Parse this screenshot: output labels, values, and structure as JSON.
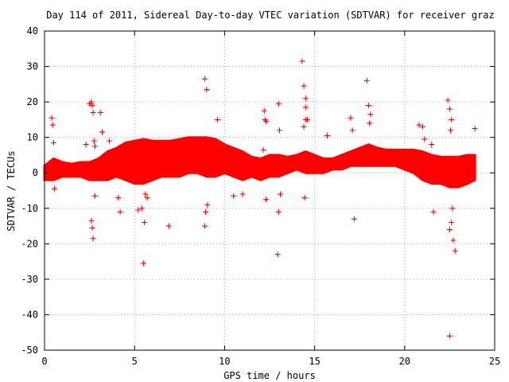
{
  "chart_data": {
    "type": "scatter",
    "title": "Day 114 of 2011, Sidereal Day-to-day VTEC variation (SDTVAR) for receiver graz",
    "xlabel": "GPS time / hours",
    "ylabel": "SDTVAR / TECUs",
    "xlim": [
      0,
      25
    ],
    "ylim": [
      -50,
      40
    ],
    "xticks": [
      0,
      5,
      10,
      15,
      20,
      25
    ],
    "yticks": [
      40,
      30,
      20,
      10,
      0,
      -10,
      -20,
      -30,
      -40,
      -50
    ],
    "grid": true,
    "marker": "+",
    "color": "#ff0000",
    "band": {
      "description": "dense scatter band (upper/lower envelope, TECU)",
      "x": [
        0,
        0.5,
        1,
        1.5,
        2,
        2.5,
        3,
        3.5,
        4,
        4.5,
        5,
        5.5,
        6,
        6.5,
        7,
        7.5,
        8,
        8.5,
        9,
        9.5,
        10,
        10.5,
        11,
        11.5,
        12,
        12.5,
        13,
        13.5,
        14,
        14.5,
        15,
        15.5,
        16,
        16.5,
        17,
        17.5,
        18,
        18.5,
        19,
        19.5,
        20,
        20.5,
        21,
        21.5,
        22,
        22.5,
        23,
        23.5,
        23.9
      ],
      "upper": [
        2,
        4,
        3,
        2.5,
        3,
        3,
        4,
        6,
        7,
        8.5,
        9,
        9.5,
        9,
        9,
        9,
        9.5,
        10,
        10,
        10,
        9.5,
        8,
        7,
        6,
        4.5,
        4,
        5,
        5,
        4.5,
        5,
        6,
        5,
        4,
        4,
        5,
        6,
        7,
        8,
        7,
        6.5,
        6.5,
        6.5,
        6.5,
        6,
        5,
        4.5,
        4.5,
        4.5,
        5,
        5
      ],
      "lower": [
        -2,
        -2,
        -1,
        -1,
        -1,
        -2,
        -2,
        -2,
        -1,
        -2,
        -3,
        -3,
        -2,
        -1,
        -1,
        -1,
        0,
        0,
        -1,
        -1,
        0,
        -1,
        -2,
        -1,
        -2,
        -1,
        -1,
        0,
        1,
        0,
        0,
        0,
        1,
        1,
        2,
        2,
        2,
        2,
        2,
        2,
        1,
        0,
        -2,
        -3,
        -3,
        -4,
        -4,
        -3,
        -2
      ]
    },
    "outliers": {
      "x": [
        0.4,
        0.45,
        0.5,
        0.55,
        2.3,
        2.5,
        2.6,
        2.65,
        2.7,
        2.75,
        2.8,
        2.6,
        2.65,
        2.7,
        2.8,
        3.1,
        3.2,
        3.6,
        4.1,
        4.2,
        5.2,
        5.4,
        5.5,
        5.55,
        5.6,
        5.7,
        6.9,
        8.9,
        9.0,
        8.95,
        9.05,
        8.9,
        9.6,
        10.5,
        11.0,
        12.2,
        12.25,
        12.3,
        12.15,
        12.3,
        13.0,
        13.05,
        13.1,
        12.95,
        13.0,
        14.3,
        14.4,
        14.5,
        14.5,
        14.6,
        14.4,
        14.45,
        14.5,
        15.7,
        17.0,
        17.1,
        17.2,
        17.9,
        18.0,
        18.1,
        18.05,
        20.8,
        21.0,
        21.1,
        21.5,
        21.6,
        22.4,
        22.5,
        22.6,
        22.55,
        22.65,
        22.6,
        22.5,
        22.7,
        22.8,
        22.5,
        23.9
      ],
      "y": [
        15.5,
        13.5,
        8.5,
        -4.5,
        8.0,
        19.5,
        20.0,
        19.0,
        17.0,
        9.0,
        7.5,
        -13.5,
        -15.5,
        -18.5,
        -6.5,
        17.0,
        11.5,
        9.0,
        -7.0,
        -11.0,
        -10.5,
        -10.0,
        -25.5,
        -14.0,
        -6.0,
        -7.0,
        -15.0,
        26.5,
        23.5,
        -11.0,
        -9.0,
        -15.0,
        15.0,
        -6.5,
        -6.0,
        17.5,
        15.0,
        14.5,
        6.5,
        -7.5,
        19.5,
        12.0,
        -6.0,
        -23.0,
        -11.0,
        31.5,
        24.5,
        21.0,
        18.5,
        15.0,
        13.0,
        -7.0,
        15.0,
        10.5,
        15.5,
        12.0,
        -13.0,
        26.0,
        19.0,
        16.5,
        14.0,
        13.5,
        13.0,
        9.5,
        8.0,
        -11.0,
        20.5,
        18.0,
        15.0,
        12.0,
        -10.0,
        -14.0,
        -16.0,
        -19.0,
        -22.0,
        -46.0,
        12.5
      ]
    }
  }
}
